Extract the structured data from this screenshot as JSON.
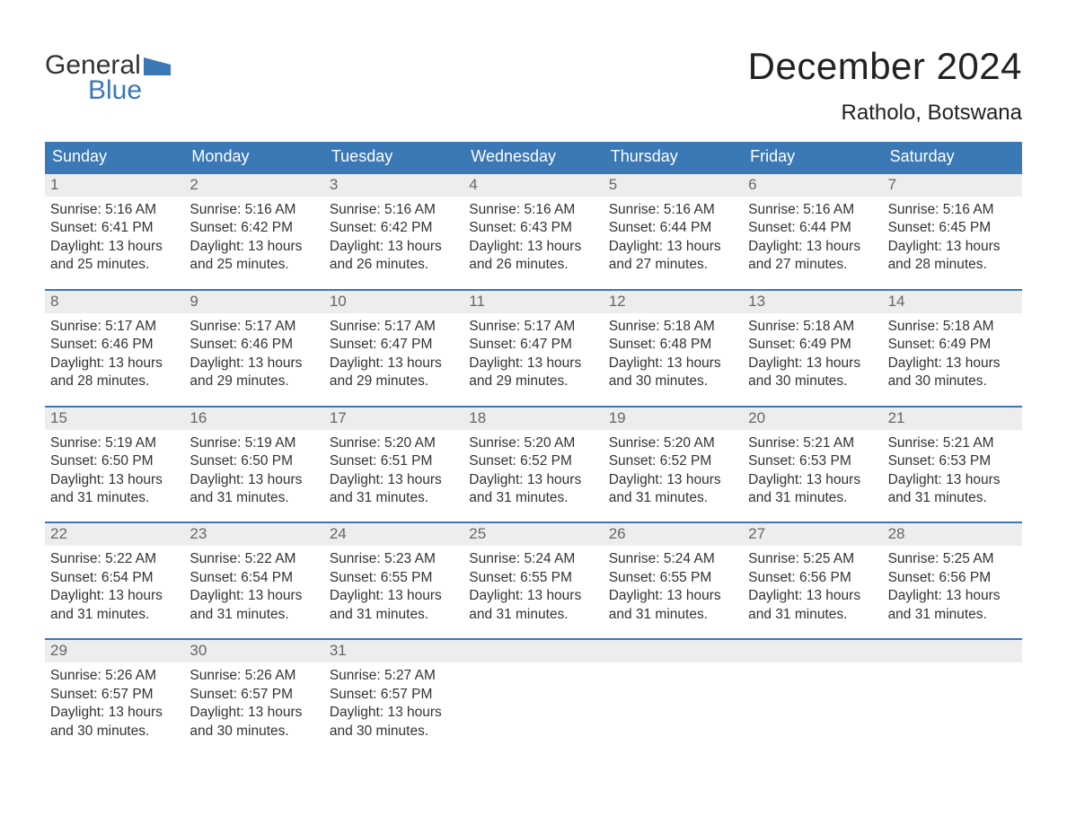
{
  "logo": {
    "word1": "General",
    "word2": "Blue",
    "flag_color": "#3a78b6"
  },
  "header": {
    "month_title": "December 2024",
    "location": "Ratholo, Botswana"
  },
  "colors": {
    "header_bg": "#3a78b6",
    "header_text": "#ffffff",
    "daynum_bg": "#ededed",
    "daynum_text": "#666666",
    "body_text": "#333333",
    "page_bg": "#ffffff",
    "week_border": "#3a78b6"
  },
  "typography": {
    "month_title_fontsize": 42,
    "location_fontsize": 24,
    "weekday_fontsize": 18,
    "daynum_fontsize": 17,
    "body_fontsize": 15.5,
    "font_family": "Arial"
  },
  "layout": {
    "columns": 7,
    "total_weeks": 5,
    "cell_lines": 4
  },
  "weekdays": [
    "Sunday",
    "Monday",
    "Tuesday",
    "Wednesday",
    "Thursday",
    "Friday",
    "Saturday"
  ],
  "days": [
    {
      "n": "1",
      "sunrise": "Sunrise: 5:16 AM",
      "sunset": "Sunset: 6:41 PM",
      "d1": "Daylight: 13 hours",
      "d2": "and 25 minutes."
    },
    {
      "n": "2",
      "sunrise": "Sunrise: 5:16 AM",
      "sunset": "Sunset: 6:42 PM",
      "d1": "Daylight: 13 hours",
      "d2": "and 25 minutes."
    },
    {
      "n": "3",
      "sunrise": "Sunrise: 5:16 AM",
      "sunset": "Sunset: 6:42 PM",
      "d1": "Daylight: 13 hours",
      "d2": "and 26 minutes."
    },
    {
      "n": "4",
      "sunrise": "Sunrise: 5:16 AM",
      "sunset": "Sunset: 6:43 PM",
      "d1": "Daylight: 13 hours",
      "d2": "and 26 minutes."
    },
    {
      "n": "5",
      "sunrise": "Sunrise: 5:16 AM",
      "sunset": "Sunset: 6:44 PM",
      "d1": "Daylight: 13 hours",
      "d2": "and 27 minutes."
    },
    {
      "n": "6",
      "sunrise": "Sunrise: 5:16 AM",
      "sunset": "Sunset: 6:44 PM",
      "d1": "Daylight: 13 hours",
      "d2": "and 27 minutes."
    },
    {
      "n": "7",
      "sunrise": "Sunrise: 5:16 AM",
      "sunset": "Sunset: 6:45 PM",
      "d1": "Daylight: 13 hours",
      "d2": "and 28 minutes."
    },
    {
      "n": "8",
      "sunrise": "Sunrise: 5:17 AM",
      "sunset": "Sunset: 6:46 PM",
      "d1": "Daylight: 13 hours",
      "d2": "and 28 minutes."
    },
    {
      "n": "9",
      "sunrise": "Sunrise: 5:17 AM",
      "sunset": "Sunset: 6:46 PM",
      "d1": "Daylight: 13 hours",
      "d2": "and 29 minutes."
    },
    {
      "n": "10",
      "sunrise": "Sunrise: 5:17 AM",
      "sunset": "Sunset: 6:47 PM",
      "d1": "Daylight: 13 hours",
      "d2": "and 29 minutes."
    },
    {
      "n": "11",
      "sunrise": "Sunrise: 5:17 AM",
      "sunset": "Sunset: 6:47 PM",
      "d1": "Daylight: 13 hours",
      "d2": "and 29 minutes."
    },
    {
      "n": "12",
      "sunrise": "Sunrise: 5:18 AM",
      "sunset": "Sunset: 6:48 PM",
      "d1": "Daylight: 13 hours",
      "d2": "and 30 minutes."
    },
    {
      "n": "13",
      "sunrise": "Sunrise: 5:18 AM",
      "sunset": "Sunset: 6:49 PM",
      "d1": "Daylight: 13 hours",
      "d2": "and 30 minutes."
    },
    {
      "n": "14",
      "sunrise": "Sunrise: 5:18 AM",
      "sunset": "Sunset: 6:49 PM",
      "d1": "Daylight: 13 hours",
      "d2": "and 30 minutes."
    },
    {
      "n": "15",
      "sunrise": "Sunrise: 5:19 AM",
      "sunset": "Sunset: 6:50 PM",
      "d1": "Daylight: 13 hours",
      "d2": "and 31 minutes."
    },
    {
      "n": "16",
      "sunrise": "Sunrise: 5:19 AM",
      "sunset": "Sunset: 6:50 PM",
      "d1": "Daylight: 13 hours",
      "d2": "and 31 minutes."
    },
    {
      "n": "17",
      "sunrise": "Sunrise: 5:20 AM",
      "sunset": "Sunset: 6:51 PM",
      "d1": "Daylight: 13 hours",
      "d2": "and 31 minutes."
    },
    {
      "n": "18",
      "sunrise": "Sunrise: 5:20 AM",
      "sunset": "Sunset: 6:52 PM",
      "d1": "Daylight: 13 hours",
      "d2": "and 31 minutes."
    },
    {
      "n": "19",
      "sunrise": "Sunrise: 5:20 AM",
      "sunset": "Sunset: 6:52 PM",
      "d1": "Daylight: 13 hours",
      "d2": "and 31 minutes."
    },
    {
      "n": "20",
      "sunrise": "Sunrise: 5:21 AM",
      "sunset": "Sunset: 6:53 PM",
      "d1": "Daylight: 13 hours",
      "d2": "and 31 minutes."
    },
    {
      "n": "21",
      "sunrise": "Sunrise: 5:21 AM",
      "sunset": "Sunset: 6:53 PM",
      "d1": "Daylight: 13 hours",
      "d2": "and 31 minutes."
    },
    {
      "n": "22",
      "sunrise": "Sunrise: 5:22 AM",
      "sunset": "Sunset: 6:54 PM",
      "d1": "Daylight: 13 hours",
      "d2": "and 31 minutes."
    },
    {
      "n": "23",
      "sunrise": "Sunrise: 5:22 AM",
      "sunset": "Sunset: 6:54 PM",
      "d1": "Daylight: 13 hours",
      "d2": "and 31 minutes."
    },
    {
      "n": "24",
      "sunrise": "Sunrise: 5:23 AM",
      "sunset": "Sunset: 6:55 PM",
      "d1": "Daylight: 13 hours",
      "d2": "and 31 minutes."
    },
    {
      "n": "25",
      "sunrise": "Sunrise: 5:24 AM",
      "sunset": "Sunset: 6:55 PM",
      "d1": "Daylight: 13 hours",
      "d2": "and 31 minutes."
    },
    {
      "n": "26",
      "sunrise": "Sunrise: 5:24 AM",
      "sunset": "Sunset: 6:55 PM",
      "d1": "Daylight: 13 hours",
      "d2": "and 31 minutes."
    },
    {
      "n": "27",
      "sunrise": "Sunrise: 5:25 AM",
      "sunset": "Sunset: 6:56 PM",
      "d1": "Daylight: 13 hours",
      "d2": "and 31 minutes."
    },
    {
      "n": "28",
      "sunrise": "Sunrise: 5:25 AM",
      "sunset": "Sunset: 6:56 PM",
      "d1": "Daylight: 13 hours",
      "d2": "and 31 minutes."
    },
    {
      "n": "29",
      "sunrise": "Sunrise: 5:26 AM",
      "sunset": "Sunset: 6:57 PM",
      "d1": "Daylight: 13 hours",
      "d2": "and 30 minutes."
    },
    {
      "n": "30",
      "sunrise": "Sunrise: 5:26 AM",
      "sunset": "Sunset: 6:57 PM",
      "d1": "Daylight: 13 hours",
      "d2": "and 30 minutes."
    },
    {
      "n": "31",
      "sunrise": "Sunrise: 5:27 AM",
      "sunset": "Sunset: 6:57 PM",
      "d1": "Daylight: 13 hours",
      "d2": "and 30 minutes."
    }
  ]
}
